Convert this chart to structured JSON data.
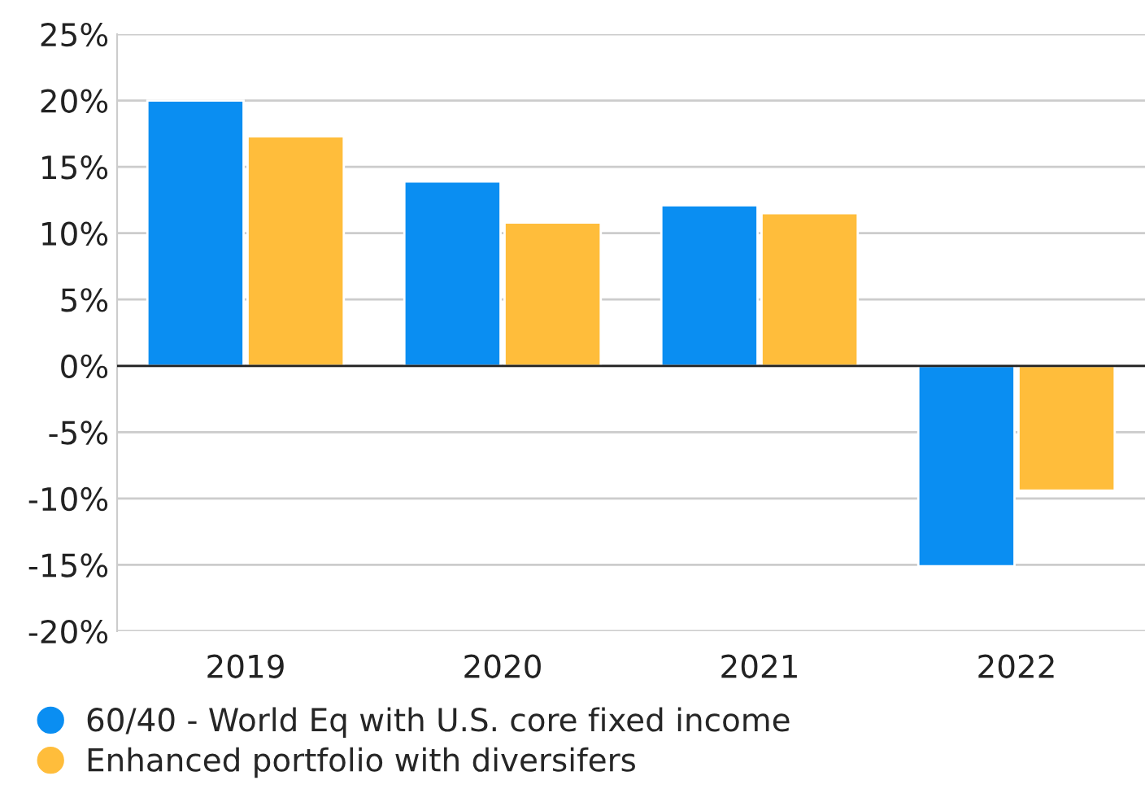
{
  "chart_data": {
    "type": "bar",
    "categories": [
      "2019",
      "2020",
      "2021",
      "2022"
    ],
    "series": [
      {
        "name": "60/40 - World Eq with U.S. core fixed income",
        "color": "#0a8ef2",
        "values": [
          20.0,
          13.9,
          12.1,
          -15.1
        ]
      },
      {
        "name": "Enhanced portfolio with diversifers",
        "color": "#ffbd3b",
        "values": [
          17.3,
          10.8,
          11.5,
          -9.4
        ]
      }
    ],
    "ylim": [
      -20,
      25
    ],
    "yticks": [
      {
        "value": -20,
        "label": "-20%"
      },
      {
        "value": -15,
        "label": "-15%"
      },
      {
        "value": -10,
        "label": "-10%"
      },
      {
        "value": -5,
        "label": "-5%"
      },
      {
        "value": 0,
        "label": "0%"
      },
      {
        "value": 5,
        "label": "5%"
      },
      {
        "value": 10,
        "label": "10%"
      },
      {
        "value": 15,
        "label": "15%"
      },
      {
        "value": 20,
        "label": "20%"
      },
      {
        "value": 25,
        "label": "25%"
      }
    ],
    "grid": "y",
    "legend": "bottom left"
  }
}
